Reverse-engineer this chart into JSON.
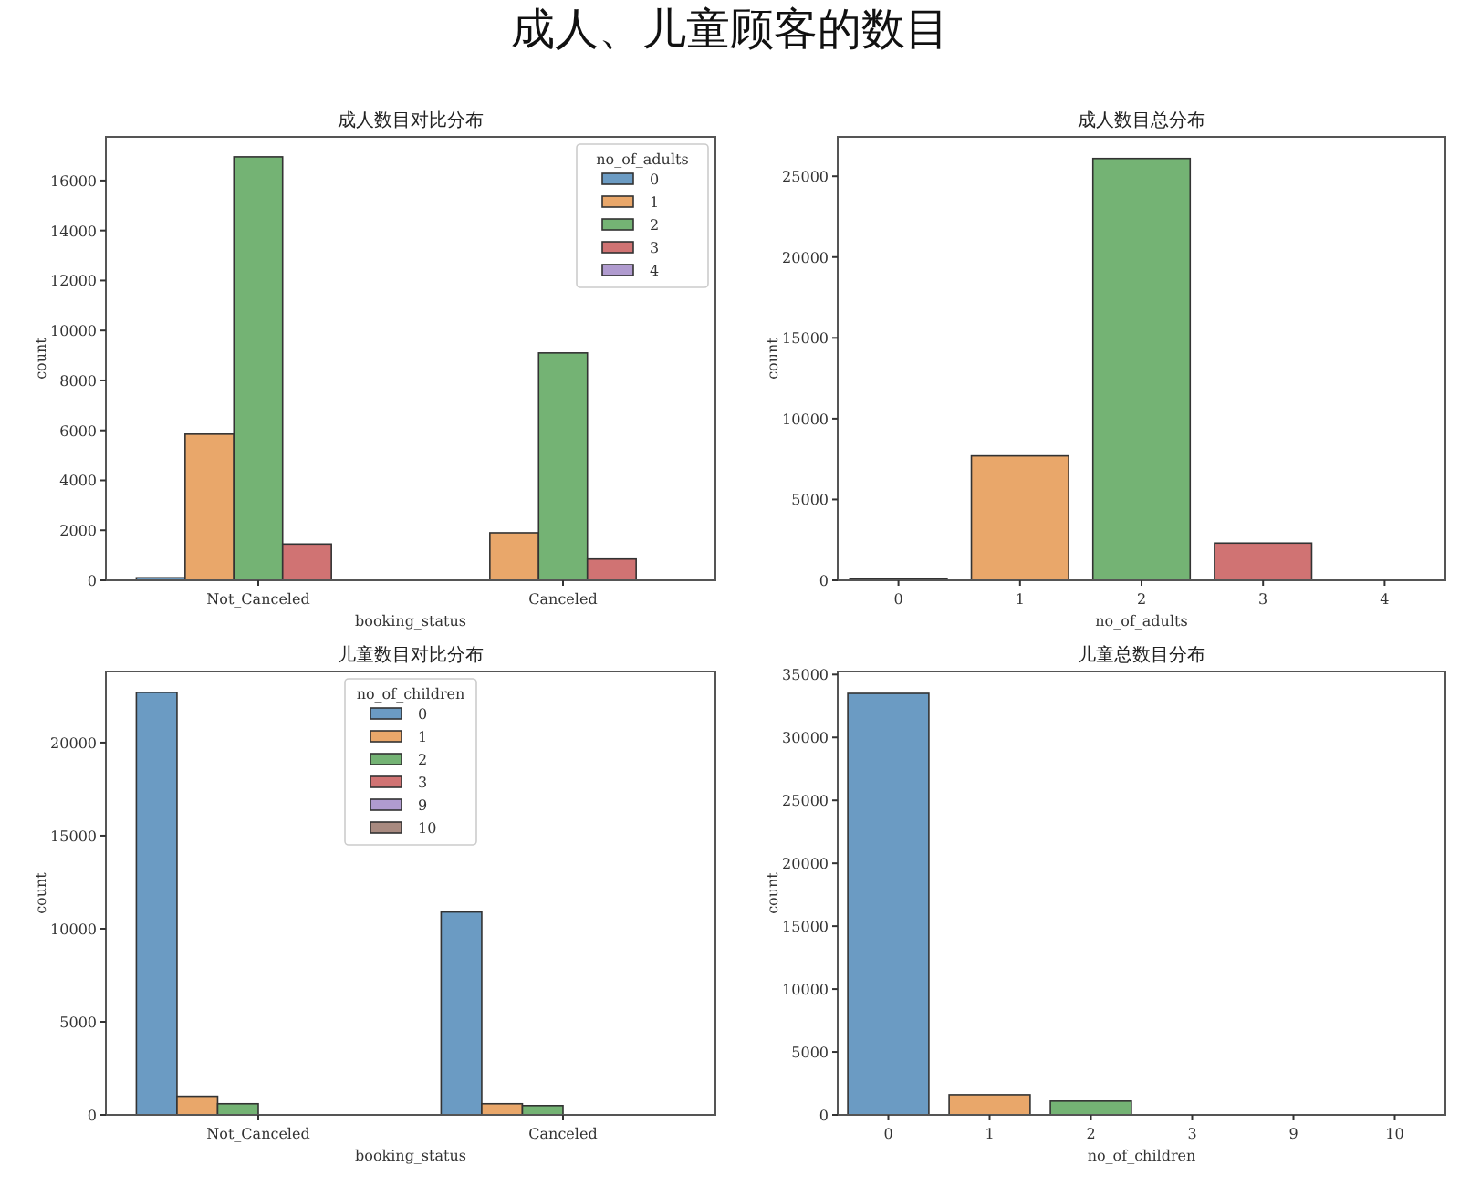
{
  "chart_data": [
    {
      "type": "bar",
      "annotations": [
        "成人、儿童顾客的数目"
      ],
      "title": "成人数目对比分布",
      "xlabel": "booking_status",
      "ylabel": "count",
      "categories": [
        "Not_Canceled",
        "Canceled"
      ],
      "legend_title": "no_of_adults",
      "legend": "top right",
      "ylim": [
        0,
        17750
      ],
      "yticks": [
        0,
        2000,
        4000,
        6000,
        8000,
        10000,
        12000,
        14000,
        16000
      ],
      "series": [
        {
          "name": "0",
          "color": "#6b9bc3",
          "values": [
            100,
            0
          ]
        },
        {
          "name": "1",
          "color": "#e9a76a",
          "values": [
            5850,
            1900
          ]
        },
        {
          "name": "2",
          "color": "#74b374",
          "values": [
            16950,
            9100
          ]
        },
        {
          "name": "3",
          "color": "#d07373",
          "values": [
            1450,
            850
          ]
        },
        {
          "name": "4",
          "color": "#b09bcf",
          "values": [
            0,
            0
          ]
        }
      ]
    },
    {
      "type": "bar",
      "title": "成人数目总分布",
      "xlabel": "no_of_adults",
      "ylabel": "count",
      "categories": [
        "0",
        "1",
        "2",
        "3",
        "4"
      ],
      "ylim": [
        0,
        27440
      ],
      "yticks": [
        0,
        5000,
        10000,
        15000,
        20000,
        25000
      ],
      "values": [
        100,
        7700,
        26100,
        2300,
        0
      ],
      "colors": [
        "#6b9bc3",
        "#e9a76a",
        "#74b374",
        "#d07373",
        "#b09bcf"
      ]
    },
    {
      "type": "bar",
      "title": "儿童数目对比分布",
      "xlabel": "booking_status",
      "ylabel": "count",
      "categories": [
        "Not_Canceled",
        "Canceled"
      ],
      "legend_title": "no_of_children",
      "legend": "top",
      "ylim": [
        0,
        23820
      ],
      "yticks": [
        0,
        5000,
        10000,
        15000,
        20000
      ],
      "series": [
        {
          "name": "0",
          "color": "#6b9bc3",
          "values": [
            22700,
            10900
          ]
        },
        {
          "name": "1",
          "color": "#e9a76a",
          "values": [
            1000,
            600
          ]
        },
        {
          "name": "2",
          "color": "#74b374",
          "values": [
            600,
            500
          ]
        },
        {
          "name": "3",
          "color": "#d07373",
          "values": [
            0,
            0
          ]
        },
        {
          "name": "9",
          "color": "#b09bcf",
          "values": [
            0,
            0
          ]
        },
        {
          "name": "10",
          "color": "#a88a80",
          "values": [
            0,
            0
          ]
        }
      ]
    },
    {
      "type": "bar",
      "title": "儿童总数目分布",
      "xlabel": "no_of_children",
      "ylabel": "count",
      "categories": [
        "0",
        "1",
        "2",
        "3",
        "9",
        "10"
      ],
      "ylim": [
        0,
        35240
      ],
      "yticks": [
        0,
        5000,
        10000,
        15000,
        20000,
        25000,
        30000,
        35000
      ],
      "values": [
        33500,
        1600,
        1100,
        0,
        0,
        0
      ],
      "colors": [
        "#6b9bc3",
        "#e9a76a",
        "#74b374",
        "#d07373",
        "#b09bcf",
        "#a88a80"
      ]
    }
  ]
}
